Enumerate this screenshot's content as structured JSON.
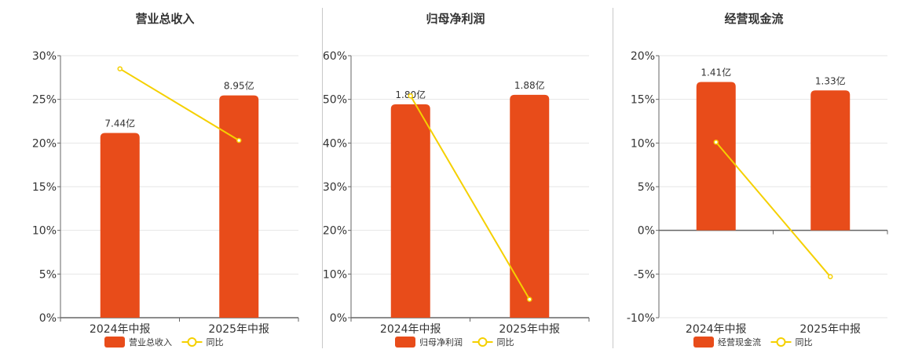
{
  "colors": {
    "bar": "#E84C1A",
    "line": "#F5D000",
    "grid": "#e6e6e6",
    "axis": "#666666",
    "text": "#333333"
  },
  "chart_data": [
    {
      "type": "bar",
      "title": "营业总收入",
      "categories": [
        "2024年中报",
        "2025年中报"
      ],
      "ylim": [
        0,
        30
      ],
      "yticks": [
        0,
        5,
        10,
        15,
        20,
        25,
        30
      ],
      "ytick_labels": [
        "0%",
        "5%",
        "10%",
        "15%",
        "20%",
        "25%",
        "30%"
      ],
      "series": [
        {
          "name": "营业总收入",
          "kind": "bar",
          "values": [
            7.44,
            8.95
          ],
          "labels": [
            "7.44亿",
            "8.95亿"
          ]
        },
        {
          "name": "同比",
          "kind": "line",
          "values": [
            28.5,
            20.3
          ]
        }
      ],
      "bar_axis_max": 10.55,
      "legend": "bottom"
    },
    {
      "type": "bar",
      "title": "归母净利润",
      "categories": [
        "2024年中报",
        "2025年中报"
      ],
      "ylim": [
        0,
        60
      ],
      "yticks": [
        0,
        10,
        20,
        30,
        40,
        50,
        60
      ],
      "ytick_labels": [
        "0%",
        "10%",
        "20%",
        "30%",
        "40%",
        "50%",
        "60%"
      ],
      "series": [
        {
          "name": "归母净利润",
          "kind": "bar",
          "values": [
            1.8,
            1.88
          ],
          "labels": [
            "1.80亿",
            "1.88亿"
          ]
        },
        {
          "name": "同比",
          "kind": "line",
          "values": [
            50.8,
            4.2
          ]
        }
      ],
      "bar_axis_max": 2.21,
      "legend": "bottom"
    },
    {
      "type": "bar",
      "title": "经营现金流",
      "categories": [
        "2024年中报",
        "2025年中报"
      ],
      "ylim": [
        -10,
        20
      ],
      "yticks": [
        -10,
        -5,
        0,
        5,
        10,
        15,
        20
      ],
      "ytick_labels": [
        "-10%",
        "-5%",
        "0%",
        "5%",
        "10%",
        "15%",
        "20%"
      ],
      "series": [
        {
          "name": "经营现金流",
          "kind": "bar",
          "values": [
            1.41,
            1.33
          ],
          "labels": [
            "1.41亿",
            "1.33亿"
          ]
        },
        {
          "name": "同比",
          "kind": "line",
          "values": [
            10.1,
            -5.3
          ]
        }
      ],
      "bar_axis_max": 1.66,
      "legend": "bottom"
    }
  ]
}
